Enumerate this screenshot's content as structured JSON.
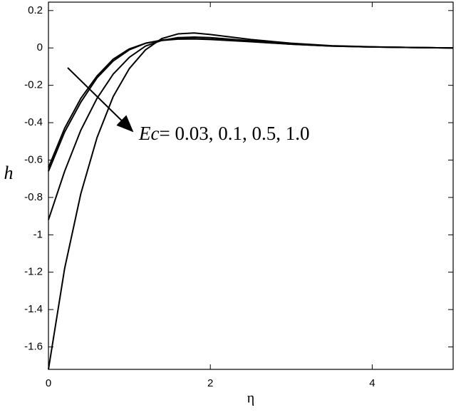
{
  "chart_data": {
    "type": "line",
    "x_label": "η",
    "y_label": "h",
    "annotation": {
      "italic": "Ec",
      "text": "= 0.03, 0.1, 0.5, 1.0"
    },
    "x": [
      0,
      0.2,
      0.4,
      0.6,
      0.8,
      1.0,
      1.2,
      1.4,
      1.6,
      1.8,
      2.0,
      2.5,
      3.0,
      3.5,
      4.0,
      4.5,
      5.0
    ],
    "series": [
      {
        "color": "#000000",
        "values": [
          -0.64,
          -0.43,
          -0.27,
          -0.15,
          -0.06,
          -0.005,
          0.025,
          0.04,
          0.047,
          0.048,
          0.045,
          0.033,
          0.02,
          0.01,
          0.005,
          0.002,
          0
        ]
      },
      {
        "color": "#000000",
        "values": [
          -0.66,
          -0.45,
          -0.29,
          -0.16,
          -0.07,
          -0.01,
          0.025,
          0.042,
          0.05,
          0.05,
          0.047,
          0.034,
          0.02,
          0.01,
          0.005,
          0.002,
          0
        ]
      },
      {
        "color": "#000000",
        "values": [
          -0.92,
          -0.66,
          -0.44,
          -0.27,
          -0.14,
          -0.05,
          0.01,
          0.04,
          0.055,
          0.058,
          0.055,
          0.038,
          0.022,
          0.011,
          0.005,
          0.002,
          0
        ]
      },
      {
        "color": "#000000",
        "values": [
          -1.72,
          -1.18,
          -0.78,
          -0.48,
          -0.26,
          -0.11,
          -0.01,
          0.05,
          0.075,
          0.08,
          0.072,
          0.045,
          0.025,
          0.012,
          0.006,
          0.002,
          0
        ]
      }
    ],
    "xlim": [
      0,
      5
    ],
    "ylim": [
      -1.72,
      0.245
    ],
    "xticks": [
      0,
      2,
      4
    ],
    "yticks": [
      0.2,
      0,
      -0.2,
      -0.4,
      -0.6,
      -0.8,
      -1,
      -1.2,
      -1.4,
      -1.6
    ]
  }
}
